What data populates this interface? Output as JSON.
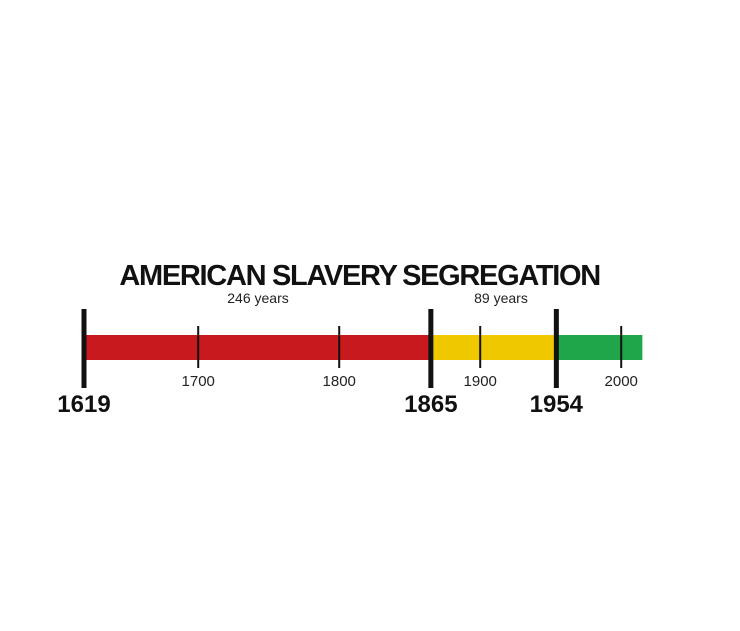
{
  "timeline": {
    "periods": [
      {
        "title": "AMERICAN SLAVERY",
        "duration": "246 years",
        "start": 1619,
        "end": 1865,
        "color": "#c8191e"
      },
      {
        "title": "SEGREGATION",
        "duration": "89 years",
        "start": 1865,
        "end": 1954,
        "color": "#f0c800"
      },
      {
        "title": "",
        "duration": "",
        "start": 1954,
        "end": 2015,
        "color": "#1fa64a"
      }
    ],
    "major_ticks": [
      {
        "year": 1619,
        "label": "1619"
      },
      {
        "year": 1865,
        "label": "1865"
      },
      {
        "year": 1954,
        "label": "1954"
      }
    ],
    "minor_ticks": [
      {
        "year": 1700,
        "label": "1700"
      },
      {
        "year": 1800,
        "label": "1800"
      },
      {
        "year": 1900,
        "label": "1900"
      },
      {
        "year": 2000,
        "label": "2000"
      }
    ]
  }
}
